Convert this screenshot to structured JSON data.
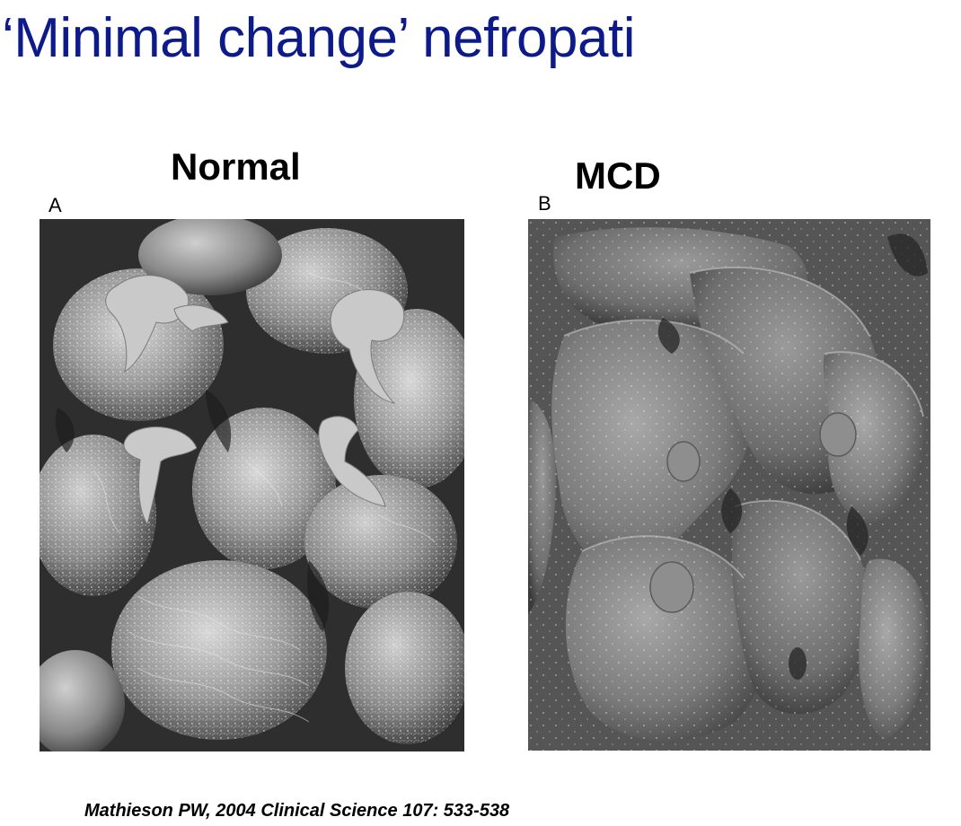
{
  "slide": {
    "title": "‘Minimal change’ nefropati"
  },
  "panels": [
    {
      "heading": "Normal",
      "letter": "A"
    },
    {
      "heading": "MCD",
      "letter": "B"
    }
  ],
  "citation": "Mathieson PW, 2004 Clinical Science 107: 533-538"
}
